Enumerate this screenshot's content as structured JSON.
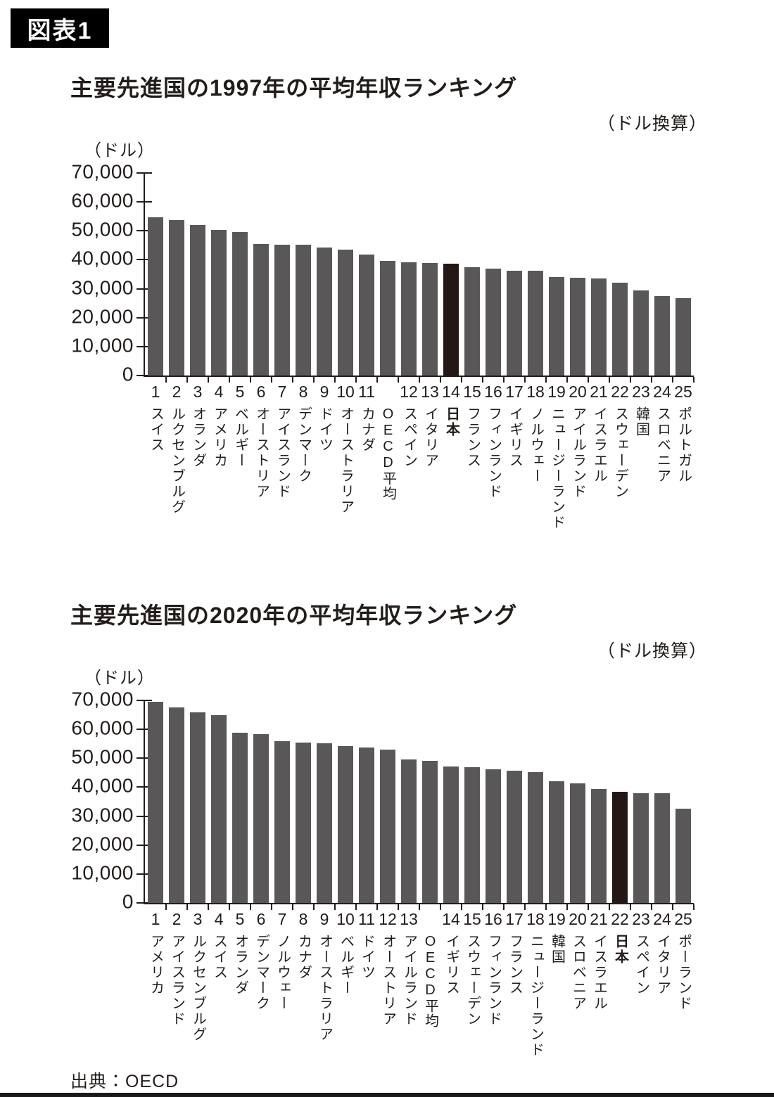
{
  "page": {
    "badge": "図表1",
    "source": "出典：OECD"
  },
  "colors": {
    "bar": "#595757",
    "highlight": "#231815",
    "axis": "#221d1a"
  },
  "chart_data": [
    {
      "type": "bar",
      "title": "主要先進国の1997年の平均年収ランキング",
      "note": "（ドル換算）",
      "ylabel": "（ドル）",
      "xlabel": "",
      "ylim": [
        0,
        70000
      ],
      "grid": false,
      "legend": "none",
      "y_ticks": [
        "70,000",
        "60,000",
        "50,000",
        "40,000",
        "30,000",
        "20,000",
        "10,000",
        "0"
      ],
      "bars": [
        {
          "rank": "1",
          "label": "スイス",
          "value": 54600
        },
        {
          "rank": "2",
          "label": "ルクセンブルグ",
          "value": 53700
        },
        {
          "rank": "3",
          "label": "オランダ",
          "value": 51900
        },
        {
          "rank": "4",
          "label": "アメリカ",
          "value": 50300
        },
        {
          "rank": "5",
          "label": "ベルギー",
          "value": 49700
        },
        {
          "rank": "6",
          "label": "オーストリア",
          "value": 45400
        },
        {
          "rank": "7",
          "label": "アイスランド",
          "value": 45300
        },
        {
          "rank": "8",
          "label": "デンマーク",
          "value": 45200
        },
        {
          "rank": "9",
          "label": "ドイツ",
          "value": 44300
        },
        {
          "rank": "10",
          "label": "オーストラリア",
          "value": 43500
        },
        {
          "rank": "11",
          "label": "カナダ",
          "value": 41900
        },
        {
          "rank": "",
          "label": "OECD平均",
          "value": 39500
        },
        {
          "rank": "12",
          "label": "スペイン",
          "value": 39200
        },
        {
          "rank": "13",
          "label": "イタリア",
          "value": 39000
        },
        {
          "rank": "14",
          "label": "日本",
          "value": 38700,
          "highlight": true
        },
        {
          "rank": "15",
          "label": "フランス",
          "value": 37500
        },
        {
          "rank": "16",
          "label": "フィンランド",
          "value": 36900
        },
        {
          "rank": "17",
          "label": "イギリス",
          "value": 36200
        },
        {
          "rank": "18",
          "label": "ノルウェー",
          "value": 36100
        },
        {
          "rank": "19",
          "label": "ニュージーランド",
          "value": 34100
        },
        {
          "rank": "20",
          "label": "アイルランド",
          "value": 33800
        },
        {
          "rank": "21",
          "label": "イスラエル",
          "value": 33500
        },
        {
          "rank": "22",
          "label": "スウェーデン",
          "value": 32000
        },
        {
          "rank": "23",
          "label": "韓国",
          "value": 29300
        },
        {
          "rank": "24",
          "label": "スロベニア",
          "value": 27400
        },
        {
          "rank": "25",
          "label": "ポルトガル",
          "value": 26800
        }
      ]
    },
    {
      "type": "bar",
      "title": "主要先進国の2020年の平均年収ランキング",
      "note": "（ドル換算）",
      "ylabel": "（ドル）",
      "xlabel": "",
      "ylim": [
        0,
        70000
      ],
      "grid": false,
      "legend": "none",
      "y_ticks": [
        "70,000",
        "60,000",
        "50,000",
        "40,000",
        "30,000",
        "20,000",
        "10,000",
        "0"
      ],
      "bars": [
        {
          "rank": "1",
          "label": "アメリカ",
          "value": 69400
        },
        {
          "rank": "2",
          "label": "アイスランド",
          "value": 67500
        },
        {
          "rank": "3",
          "label": "ルクセンブルグ",
          "value": 65900
        },
        {
          "rank": "4",
          "label": "スイス",
          "value": 64800
        },
        {
          "rank": "5",
          "label": "オランダ",
          "value": 58800
        },
        {
          "rank": "6",
          "label": "デンマーク",
          "value": 58400
        },
        {
          "rank": "7",
          "label": "ノルウェー",
          "value": 55800
        },
        {
          "rank": "8",
          "label": "カナダ",
          "value": 55300
        },
        {
          "rank": "9",
          "label": "オーストラリア",
          "value": 55200
        },
        {
          "rank": "10",
          "label": "ベルギー",
          "value": 54300
        },
        {
          "rank": "11",
          "label": "ドイツ",
          "value": 53700
        },
        {
          "rank": "12",
          "label": "オーストリア",
          "value": 53100
        },
        {
          "rank": "13",
          "label": "アイルランド",
          "value": 49500
        },
        {
          "rank": "",
          "label": "OECD平均",
          "value": 49200
        },
        {
          "rank": "14",
          "label": "イギリス",
          "value": 47100
        },
        {
          "rank": "15",
          "label": "スウェーデン",
          "value": 47000
        },
        {
          "rank": "16",
          "label": "フィンランド",
          "value": 46200
        },
        {
          "rank": "17",
          "label": "フランス",
          "value": 45600
        },
        {
          "rank": "18",
          "label": "ニュージーランド",
          "value": 45300
        },
        {
          "rank": "19",
          "label": "韓国",
          "value": 42000
        },
        {
          "rank": "20",
          "label": "スロベニア",
          "value": 41400
        },
        {
          "rank": "21",
          "label": "イスラエル",
          "value": 39300
        },
        {
          "rank": "22",
          "label": "日本",
          "value": 38500,
          "highlight": true
        },
        {
          "rank": "23",
          "label": "スペイン",
          "value": 37900
        },
        {
          "rank": "24",
          "label": "イタリア",
          "value": 37800
        },
        {
          "rank": "25",
          "label": "ポーランド",
          "value": 32500
        }
      ]
    }
  ]
}
